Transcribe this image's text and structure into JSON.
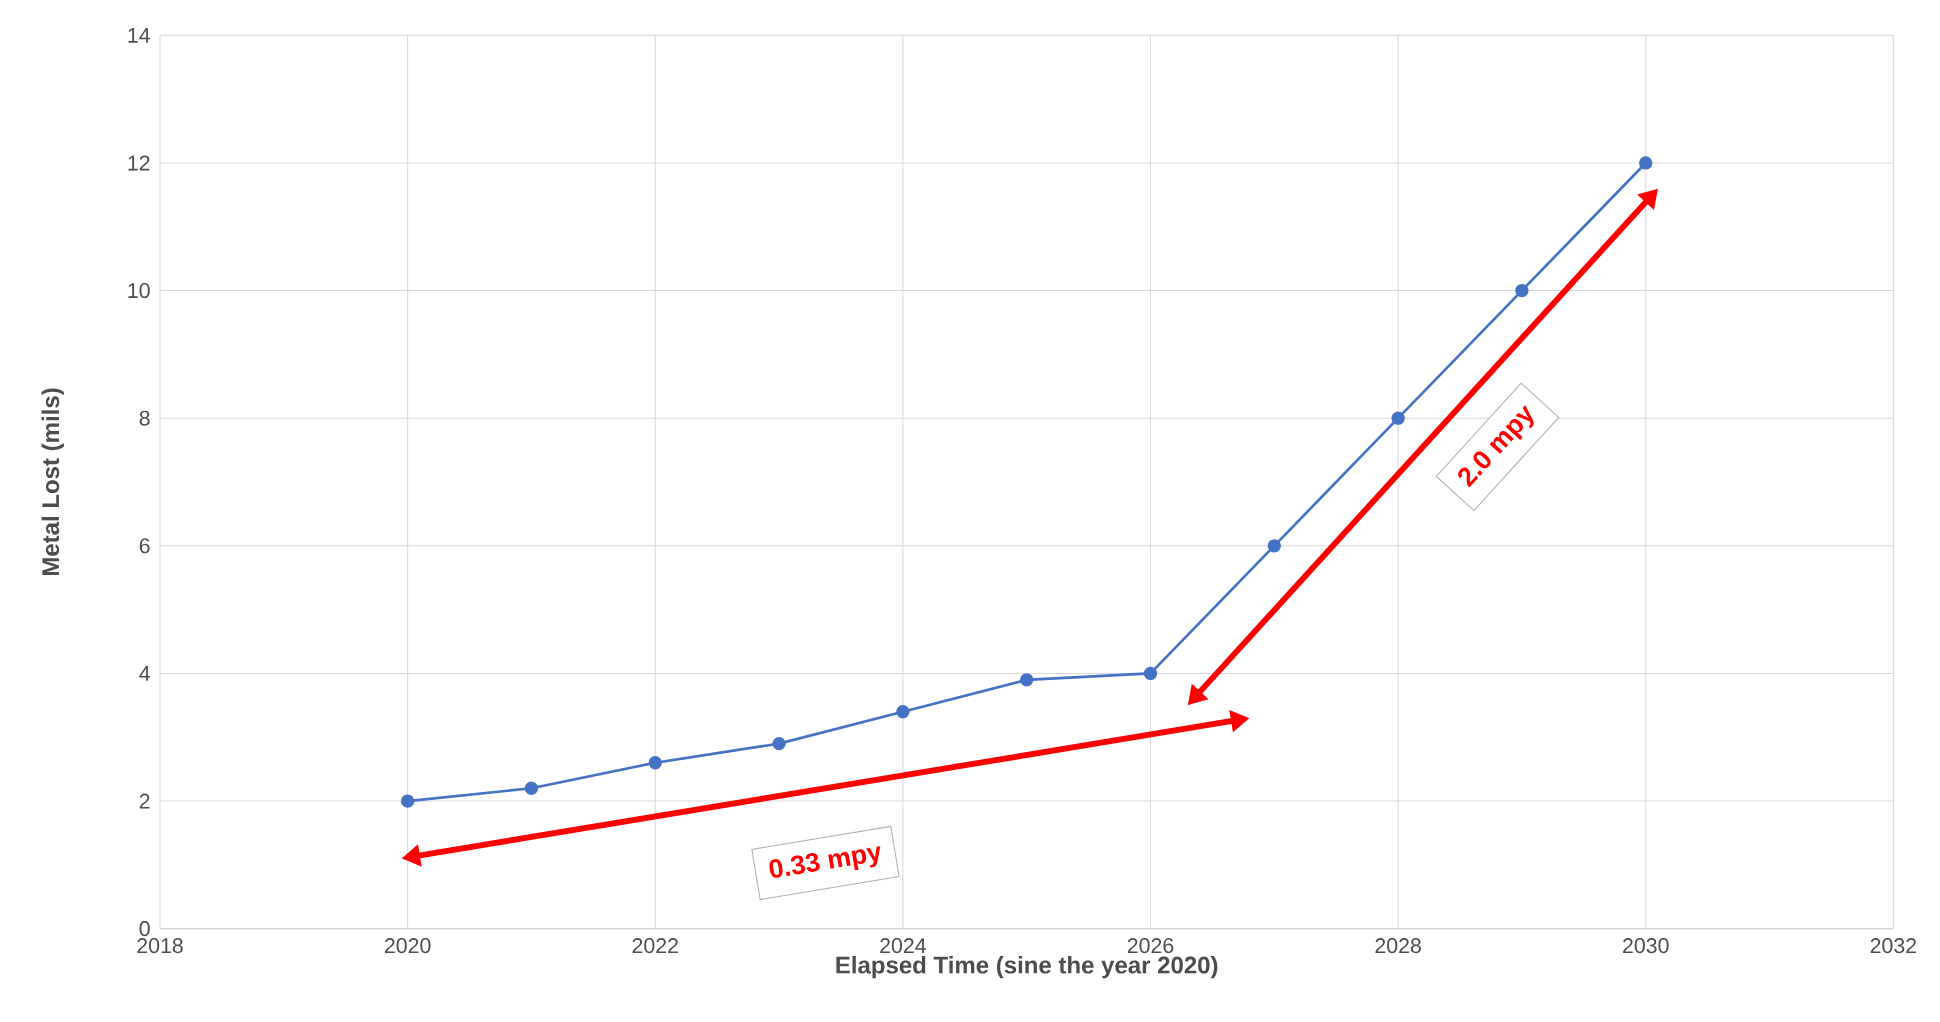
{
  "chart_data": {
    "type": "line",
    "xlabel": "Elapsed Time (sine the year 2020)",
    "ylabel": "Metal Lost (mils)",
    "x": [
      2020,
      2021,
      2022,
      2023,
      2024,
      2025,
      2026,
      2027,
      2028,
      2029,
      2030
    ],
    "series": [
      {
        "color": "#4472c4",
        "values": [
          2.0,
          2.2,
          2.6,
          2.9,
          3.4,
          3.9,
          4.0,
          6,
          8,
          10,
          12
        ]
      }
    ],
    "xlim": [
      2018,
      2032
    ],
    "xticks": [
      2018,
      2020,
      2022,
      2024,
      2026,
      2028,
      2030,
      2032
    ],
    "ylim": [
      0,
      14
    ],
    "yticks": [
      0,
      2,
      4,
      6,
      8,
      10,
      12,
      14
    ],
    "grid": true,
    "marker": "circle",
    "line_style": "solid",
    "annotations": [
      "0.33 mpy",
      "2.0 mpy"
    ]
  }
}
